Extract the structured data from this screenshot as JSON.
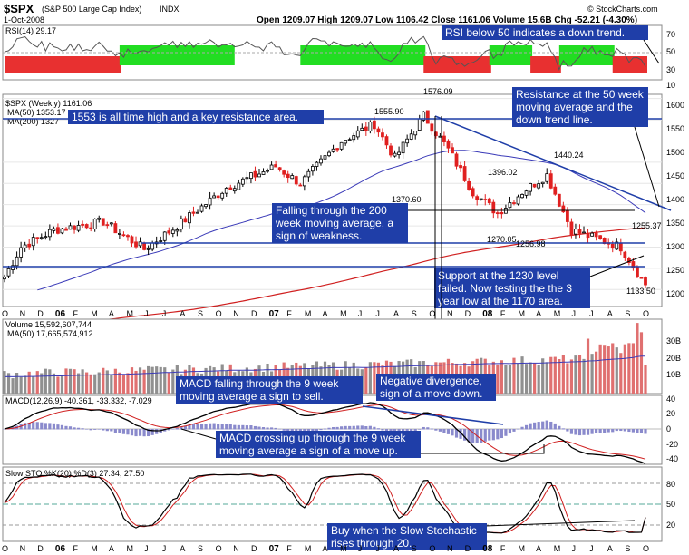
{
  "header": {
    "symbol": "$SPX",
    "name": "(S&P 500 Large Cap Index)",
    "exchange": "INDX",
    "date": "1-Oct-2008",
    "ohlc": "Open 1209.07  High 1209.07  Low 1106.42  Close 1161.06  Volume 15.6B  Chg -52.21 (-4.30%)",
    "copyright": "© StockCharts.com"
  },
  "rsi_panel": {
    "label": "RSI(14) 29.17",
    "ticks": [
      "70",
      "50",
      "30",
      "10"
    ],
    "annotation": "RSI below 50 indicates a down trend.",
    "zone_sequence": [
      "red",
      "green",
      "white",
      "green",
      "red",
      "green",
      "red",
      "green",
      "red"
    ]
  },
  "price_panel": {
    "label": "$SPX (Weekly) 1161.06",
    "ma50_label": "MA(50) 1353.17",
    "ma200_label": "MA(200) 1327",
    "y_ticks": [
      "1600",
      "1550",
      "1500",
      "1450",
      "1400",
      "1350",
      "1300",
      "1250",
      "1200",
      "1150"
    ],
    "price_labels": [
      "1555.90",
      "1576.09",
      "1370.60",
      "1396.02",
      "1440.24",
      "1270.05",
      "1256.98",
      "1255.37",
      "1133.50"
    ],
    "annotations": [
      "1553 is all time high and a key resistance area.",
      "Resistance at the 50 week moving average and the down trend line.",
      "Falling through the 200 week moving average, a sign of weakness.",
      "Support at the 1230 level failed. Now testing the the 3 year low at the 1170 area."
    ]
  },
  "x_axis": {
    "labels": [
      "O",
      "N",
      "D",
      "06",
      "F",
      "M",
      "A",
      "M",
      "J",
      "J",
      "A",
      "S",
      "O",
      "N",
      "D",
      "07",
      "F",
      "M",
      "A",
      "M",
      "J",
      "J",
      "A",
      "S",
      "O",
      "N",
      "D",
      "08",
      "F",
      "M",
      "A",
      "M",
      "J",
      "J",
      "A",
      "S",
      "O"
    ]
  },
  "volume_panel": {
    "label": "Volume 15,592,607,744",
    "ma_label": "MA(50) 17,665,574,912",
    "y_ticks": [
      "30B",
      "20B",
      "10B"
    ]
  },
  "macd_panel": {
    "label": "MACD(12,26,9) -40.361, -33.332, -7.029",
    "y_ticks": [
      "40",
      "20",
      "0",
      "-20",
      "-40"
    ],
    "annotations": [
      "MACD falling through the 9 week moving average a sign to sell.",
      "Negative divergence, sign of a move down.",
      "MACD crossing up through the 9 week moving average a sign of a move up."
    ]
  },
  "sto_panel": {
    "label": "Slow STO %K(20) %D(3) 27.34, 27.50",
    "y_ticks": [
      "80",
      "50",
      "20"
    ],
    "annotation": "Buy when the Slow Stochastic rises through 20."
  },
  "colors": {
    "up": "#000000",
    "down": "#e02020",
    "ma50": "#3a3ab8",
    "ma200": "#d02020",
    "annotation_bg": "#1f3ea8",
    "rsi_green": "#22dd22",
    "rsi_red": "#e83030",
    "volume_red": "#e07070",
    "volume_gray": "#909090",
    "macd_hist": "#8a8acc"
  },
  "chart_data": {
    "type": "candlestick",
    "title": "$SPX (S&P 500 Large Cap Index) Weekly",
    "x_range": [
      "Oct 2005",
      "Oct 2008"
    ],
    "ylim": [
      1110,
      1610
    ],
    "key_levels": {
      "all_time_high": 1553,
      "support": 1230,
      "three_year_low": 1170
    },
    "price_path": [
      {
        "t": 0,
        "v": 1180
      },
      {
        "t": 4,
        "v": 1250
      },
      {
        "t": 12,
        "v": 1290
      },
      {
        "t": 24,
        "v": 1310
      },
      {
        "t": 34,
        "v": 1245
      },
      {
        "t": 42,
        "v": 1300
      },
      {
        "t": 54,
        "v": 1390
      },
      {
        "t": 66,
        "v": 1440
      },
      {
        "t": 72,
        "v": 1400
      },
      {
        "t": 82,
        "v": 1500
      },
      {
        "t": 90,
        "v": 1540
      },
      {
        "t": 95,
        "v": 1460
      },
      {
        "t": 102,
        "v": 1560
      },
      {
        "t": 108,
        "v": 1480
      },
      {
        "t": 114,
        "v": 1380
      },
      {
        "t": 120,
        "v": 1330
      },
      {
        "t": 126,
        "v": 1380
      },
      {
        "t": 132,
        "v": 1420
      },
      {
        "t": 138,
        "v": 1290
      },
      {
        "t": 144,
        "v": 1270
      },
      {
        "t": 150,
        "v": 1250
      },
      {
        "t": 156,
        "v": 1161
      }
    ],
    "rsi_last": 29.17,
    "macd_last": [
      -40.361,
      -33.332,
      -7.029
    ],
    "sto_last": [
      27.34,
      27.5
    ],
    "volume_last": 15592607744
  }
}
